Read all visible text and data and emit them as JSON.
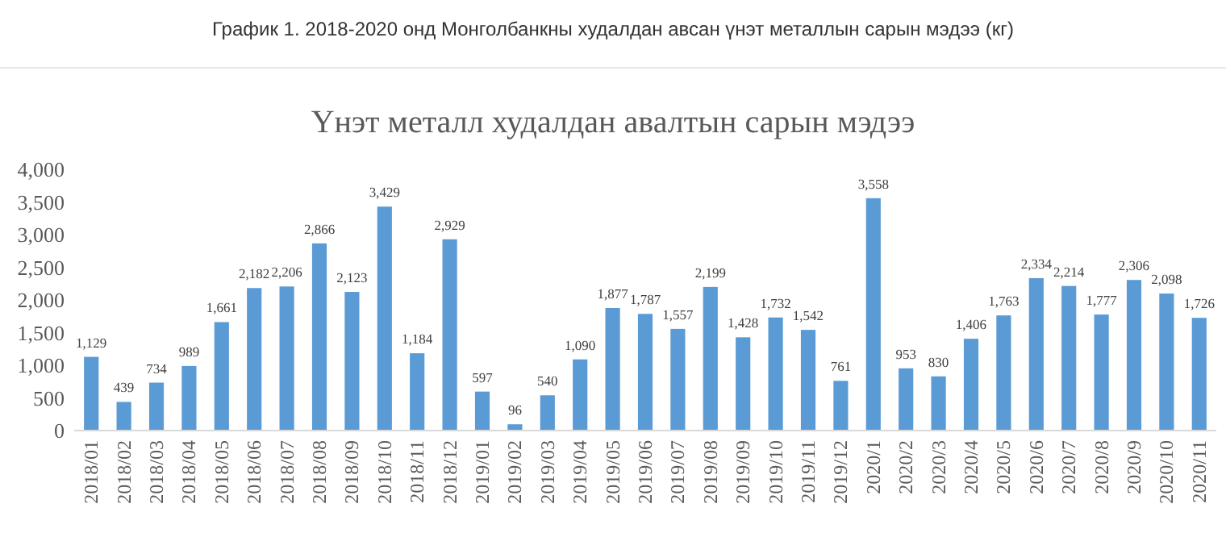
{
  "chart_data": {
    "type": "bar",
    "title": "График 1. 2018-2020 онд Монголбанкны худалдан авсан үнэт металлын сарын мэдээ (кг)",
    "subtitle": "Үнэт металл худалдан авалтын сарын мэдээ",
    "categories": [
      "2018/01",
      "2018/02",
      "2018/03",
      "2018/04",
      "2018/05",
      "2018/06",
      "2018/07",
      "2018/08",
      "2018/09",
      "2018/10",
      "2018/11",
      "2018/12",
      "2019/01",
      "2019/02",
      "2019/03",
      "2019/04",
      "2019/05",
      "2019/06",
      "2019/07",
      "2019/08",
      "2019/09",
      "2019/10",
      "2019/11",
      "2019/12",
      "2020/1",
      "2020/2",
      "2020/3",
      "2020/4",
      "2020/5",
      "2020/6",
      "2020/7",
      "2020/8",
      "2020/9",
      "2020/10",
      "2020/11"
    ],
    "values": [
      1129,
      439,
      734,
      989,
      1661,
      2182,
      2206,
      2866,
      2123,
      3429,
      1184,
      2929,
      597,
      96,
      540,
      1090,
      1877,
      1787,
      1557,
      2199,
      1428,
      1732,
      1542,
      761,
      3558,
      953,
      830,
      1406,
      1763,
      2334,
      2214,
      1777,
      2306,
      2098,
      1726
    ],
    "color": "#5b9bd5",
    "ylim": [
      0,
      4000
    ],
    "yticks": [
      {
        "value": 0,
        "label": "0"
      },
      {
        "value": 500,
        "label": "500"
      },
      {
        "value": 1000,
        "label": "1,000"
      },
      {
        "value": 1500,
        "label": "1,500"
      },
      {
        "value": 2000,
        "label": "2,000"
      },
      {
        "value": 2500,
        "label": "2,500"
      },
      {
        "value": 3000,
        "label": "3,000"
      },
      {
        "value": 3500,
        "label": "3,500"
      },
      {
        "value": 4000,
        "label": "4,000"
      }
    ],
    "value_labels": [
      "1,129",
      "439",
      "734",
      "989",
      "1,661",
      "2,182",
      "2,206",
      "2,866",
      "2,123",
      "3,429",
      "1,184",
      "2,929",
      "597",
      "96",
      "540",
      "1,090",
      "1,877",
      "1,787",
      "1,557",
      "2,199",
      "1,428",
      "1,732",
      "1,542",
      "761",
      "3,558",
      "953",
      "830",
      "1,406",
      "1,763",
      "2,334",
      "2,214",
      "1,777",
      "2,306",
      "2,098",
      "1,726"
    ]
  }
}
